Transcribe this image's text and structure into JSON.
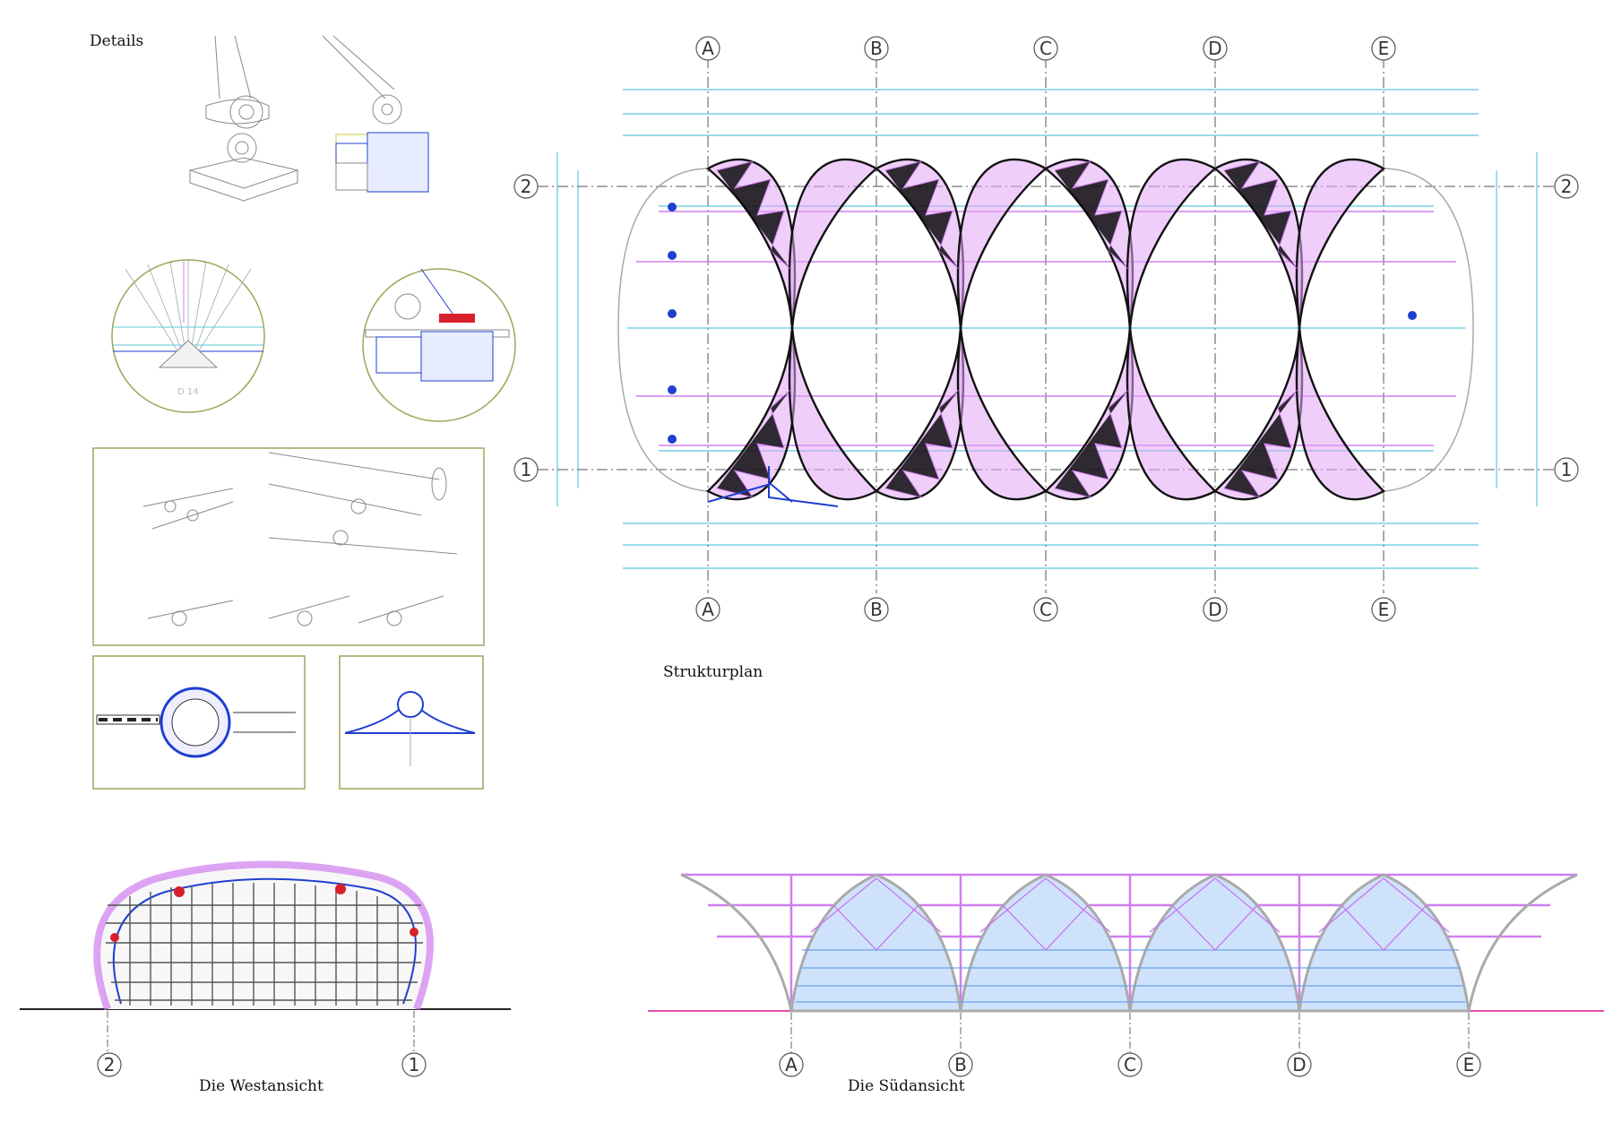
{
  "sections": {
    "details": "Details",
    "plan": "Strukturplan",
    "west": "Die Westansicht",
    "south": "Die Südansicht"
  },
  "grid": {
    "letters": [
      "A",
      "B",
      "C",
      "D",
      "E"
    ],
    "rows": [
      "2",
      "1"
    ],
    "west_axes": [
      "2",
      "1"
    ]
  },
  "detail_tag": "D 14",
  "colors": {
    "magenta": "#d07ef0",
    "cyan": "#5cc8dd",
    "blue": "#1f3fd0",
    "grey": "#8a8a8a",
    "olive": "#a3a45a",
    "red": "#d8202a"
  }
}
